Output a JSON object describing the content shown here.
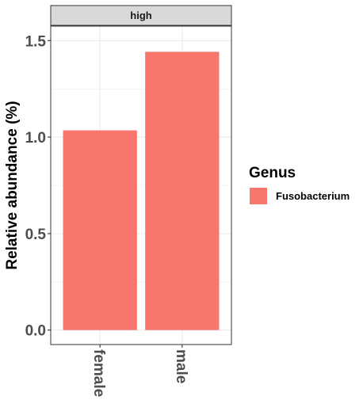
{
  "chart_data": {
    "type": "bar",
    "facet": "high",
    "categories": [
      "female",
      "male"
    ],
    "series": [
      {
        "name": "Fusobacterium",
        "values": [
          1.035,
          1.442
        ],
        "color": "#F8766D"
      }
    ],
    "ylabel": "Relative abundance (%)",
    "xlabel": "",
    "ylim": [
      -0.075,
      1.575
    ],
    "yticks": [
      0.0,
      0.5,
      1.0,
      1.5
    ],
    "ytick_labels": [
      "0.0",
      "0.5",
      "1.0",
      "1.5"
    ],
    "grid": true,
    "legend": {
      "title": "Genus",
      "position": "right"
    },
    "colors": {
      "bar": "#F8766D",
      "strip": "#D9D9D9",
      "grid": "#EBEBEB",
      "panel_border": "#333333"
    }
  }
}
